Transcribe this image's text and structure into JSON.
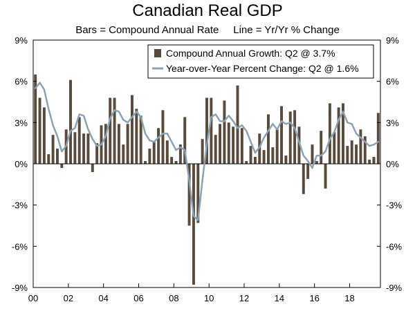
{
  "chart_data": {
    "type": "bar",
    "title": "Canadian Real GDP",
    "subtitle": "Bars = Compound Annual Rate     Line = Yr/Yr % Change",
    "ylim": [
      -9,
      9
    ],
    "yticks_left": [
      "9%",
      "6%",
      "3%",
      "0%",
      "-3%",
      "-6%",
      "-9%"
    ],
    "yticks_right": [
      "9%",
      "6%",
      "3%",
      "0%",
      "-3%",
      "-6%",
      "-9%"
    ],
    "ytick_values": [
      9,
      6,
      3,
      0,
      -3,
      -6,
      -9
    ],
    "xticks": [
      "00",
      "02",
      "04",
      "06",
      "08",
      "10",
      "12",
      "14",
      "16",
      "18"
    ],
    "legend": [
      "Compound Annual Growth: Q2 @ 3.7%",
      "Year-over-Year Percent Change: Q2 @ 1.6%"
    ],
    "colors": {
      "bars": "#5a4a3c",
      "line": "#8aa3b5"
    },
    "start_year": 2000,
    "series": [
      {
        "name": "Compound Annual Growth",
        "kind": "bar",
        "values": [
          6.5,
          4.8,
          4.1,
          0.7,
          2.1,
          1.1,
          -0.3,
          2.5,
          6.1,
          2.3,
          3.4,
          2.2,
          2.2,
          -0.6,
          1.5,
          2.8,
          2.9,
          4.8,
          4.8,
          2.9,
          1.4,
          2.9,
          5.0,
          4.0,
          3.5,
          0.2,
          1.1,
          1.6,
          2.6,
          3.9,
          1.7,
          0.5,
          0.2,
          1.4,
          3.4,
          -4.5,
          -8.8,
          -4.3,
          1.8,
          4.8,
          4.8,
          2.1,
          2.9,
          4.6,
          3.0,
          2.7,
          5.7,
          2.6,
          0.2,
          1.3,
          0.5,
          2.2,
          1.0,
          3.6,
          1.2,
          2.5,
          4.2,
          0.6,
          3.8,
          3.9,
          2.7,
          -2.2,
          -1.1,
          1.4,
          0.2,
          2.4,
          -1.8,
          4.4,
          2.3,
          4.1,
          4.4,
          1.3,
          1.7,
          1.4,
          2.5,
          2.0,
          0.3,
          0.5,
          3.7
        ]
      },
      {
        "name": "Year-over-Year Percent Change",
        "kind": "line",
        "values": [
          5.5,
          5.9,
          5.4,
          4.0,
          2.8,
          2.0,
          0.9,
          1.3,
          2.4,
          2.6,
          3.6,
          3.5,
          2.5,
          1.8,
          1.3,
          1.4,
          2.0,
          3.3,
          3.9,
          3.8,
          3.2,
          3.0,
          3.4,
          3.8,
          3.4,
          2.2,
          1.7,
          1.6,
          1.9,
          2.2,
          2.2,
          1.6,
          1.0,
          1.2,
          1.0,
          -1.2,
          -3.8,
          -4.1,
          -1.2,
          1.4,
          3.4,
          3.6,
          3.1,
          3.1,
          3.5,
          3.1,
          2.6,
          2.8,
          2.4,
          1.6,
          0.8,
          1.2,
          1.9,
          2.4,
          2.9,
          2.5,
          3.1,
          2.9,
          3.0,
          2.6,
          1.6,
          0.6,
          0.2,
          -0.3,
          0.6,
          0.6,
          0.9,
          1.8,
          2.3,
          3.2,
          3.8,
          3.0,
          2.9,
          2.2,
          1.9,
          1.6,
          1.3,
          1.4,
          1.6
        ]
      }
    ]
  }
}
